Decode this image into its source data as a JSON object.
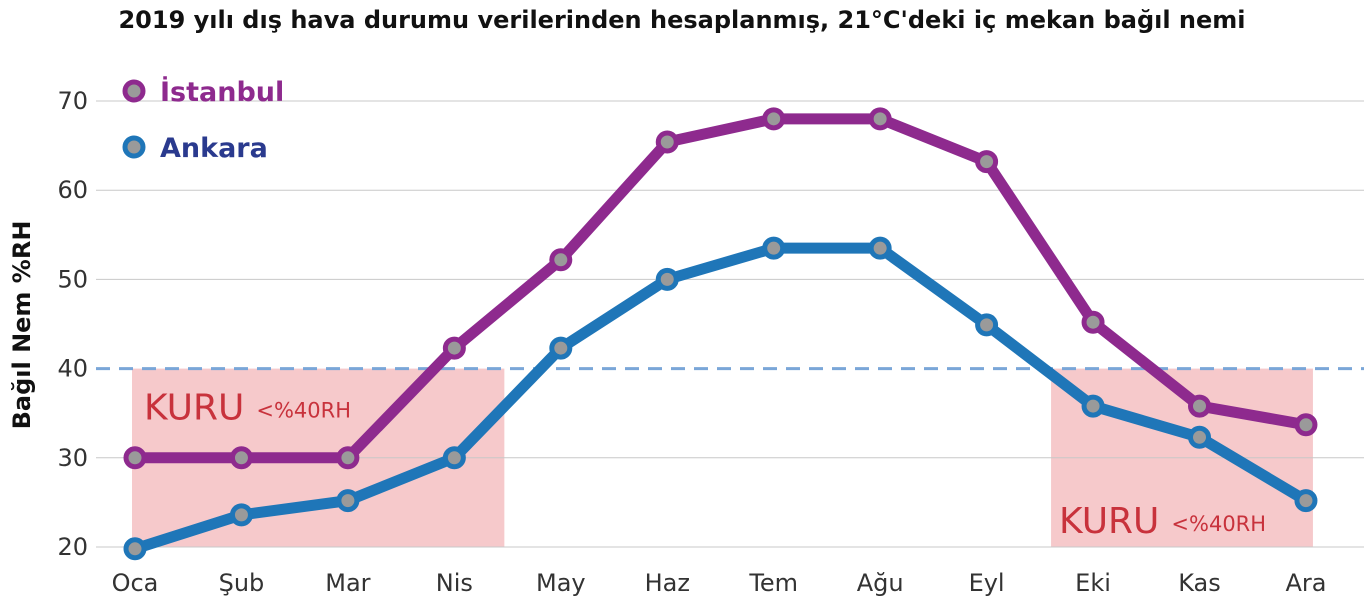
{
  "chart_data": {
    "type": "line",
    "title": "2019 yılı dış hava durumu verilerinden hesaplanmış, 21°C'deki iç mekan bağıl nemi",
    "xlabel": "",
    "ylabel": "Bağıl Nem %RH",
    "categories": [
      "Oca",
      "Şub",
      "Mar",
      "Nis",
      "May",
      "Haz",
      "Tem",
      "Ağu",
      "Eyl",
      "Eki",
      "Kas",
      "Ara"
    ],
    "ylim": [
      20,
      70
    ],
    "yticks": [
      "20",
      "30",
      "40",
      "50",
      "60",
      "70"
    ],
    "grid": true,
    "legend_position": "top-left",
    "series": [
      {
        "name": "İstanbul",
        "color": "#8e2a8e",
        "values": [
          30,
          30,
          30,
          42.3,
          52.2,
          65.4,
          68,
          68,
          63.2,
          45.2,
          35.8,
          33.7
        ]
      },
      {
        "name": "Ankara",
        "color": "#1f76b8",
        "values": [
          19.8,
          23.6,
          25.2,
          30,
          42.3,
          50,
          53.5,
          53.5,
          44.9,
          35.8,
          32.3,
          25.2
        ]
      }
    ],
    "threshold": {
      "value": 40,
      "color": "#7aa6d8"
    },
    "dry_zones": [
      {
        "from": "Oca",
        "to": "Nis",
        "label": "KURU",
        "sublabel": "<%40RH"
      },
      {
        "from": "Eki",
        "to": "Ara",
        "label": "KURU",
        "sublabel": "<%40RH"
      }
    ],
    "dry_zone_color": "#f6c9cb"
  }
}
